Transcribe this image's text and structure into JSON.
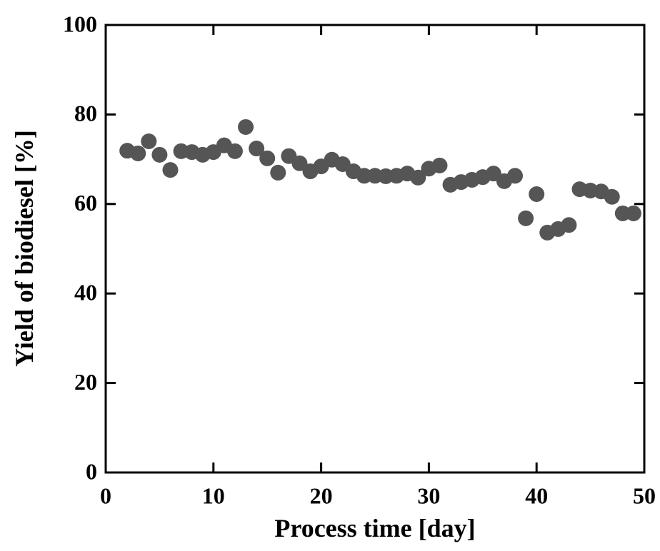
{
  "chart_data": {
    "type": "scatter",
    "xlabel": "Process time [day]",
    "ylabel": "Yield of biodiesel [%]",
    "xlim": [
      0,
      50
    ],
    "xticks": [
      0,
      10,
      20,
      30,
      40,
      50
    ],
    "ylim": [
      0,
      100
    ],
    "yticks": [
      0,
      20,
      40,
      60,
      80,
      100
    ],
    "color": "#555555",
    "x": [
      2,
      3,
      4,
      5,
      6,
      7,
      8,
      9,
      10,
      11,
      12,
      13,
      14,
      15,
      16,
      17,
      18,
      19,
      20,
      21,
      22,
      23,
      24,
      25,
      26,
      27,
      28,
      29,
      30,
      31,
      32,
      33,
      34,
      35,
      36,
      37,
      38,
      39,
      40,
      41,
      42,
      43,
      44,
      45,
      46,
      47,
      48,
      49
    ],
    "values": [
      71.9,
      71.3,
      74.0,
      71.0,
      67.6,
      71.8,
      71.6,
      71.0,
      71.6,
      73.1,
      71.8,
      77.2,
      72.4,
      70.2,
      67.0,
      70.7,
      69.1,
      67.3,
      68.4,
      69.9,
      68.9,
      67.3,
      66.3,
      66.3,
      66.2,
      66.3,
      66.8,
      65.9,
      67.9,
      68.6,
      64.3,
      64.9,
      65.4,
      66.0,
      66.8,
      65.1,
      66.3,
      56.8,
      62.2,
      53.6,
      54.4,
      55.3,
      63.3,
      63.0,
      62.8,
      61.6,
      57.9,
      57.9
    ]
  }
}
